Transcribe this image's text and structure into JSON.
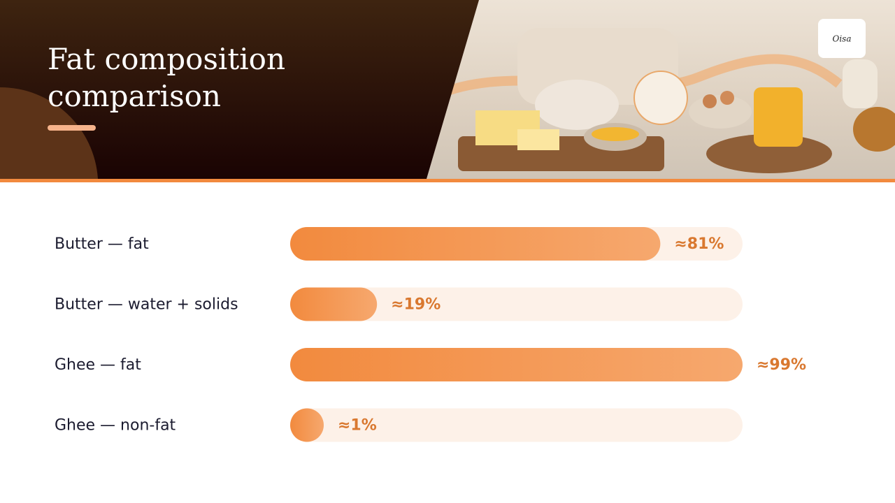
{
  "title": "Fat composition comparison",
  "logo": "Oisa",
  "chart_data": {
    "type": "bar",
    "orientation": "horizontal",
    "categories": [
      "Butter — fat",
      "Butter — water + solids",
      "Ghee — fat",
      "Ghee — non-fat"
    ],
    "values": [
      81,
      19,
      99,
      1
    ],
    "value_labels": [
      "≈81%",
      "≈19%",
      "≈99%",
      "≈1%"
    ],
    "color": "#f28a3e"
  }
}
